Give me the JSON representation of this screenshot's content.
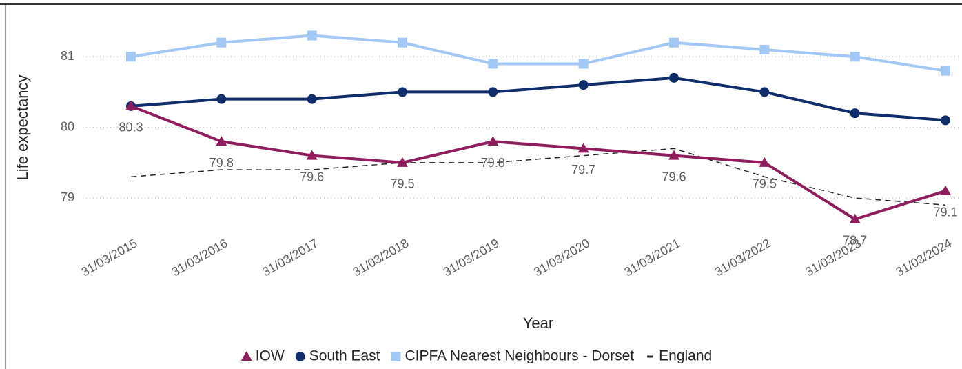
{
  "chart_data": {
    "type": "line",
    "x_label": "Year",
    "y_label": "Life expectancy",
    "categories": [
      "31/03/2015",
      "31/03/2016",
      "31/03/2017",
      "31/03/2018",
      "31/03/2019",
      "31/03/2020",
      "31/03/2021",
      "31/03/2022",
      "31/03/2023",
      "31/03/2024"
    ],
    "series": [
      {
        "name": "IOW",
        "color": "#8f1d5e",
        "marker": "triangle",
        "data_labels": true,
        "values": [
          80.3,
          79.8,
          79.6,
          79.5,
          79.8,
          79.7,
          79.6,
          79.5,
          78.7,
          79.1
        ]
      },
      {
        "name": "South East",
        "color": "#0f2d6b",
        "marker": "circle",
        "values": [
          80.3,
          80.4,
          80.4,
          80.5,
          80.5,
          80.6,
          80.7,
          80.5,
          80.2,
          80.1
        ]
      },
      {
        "name": "CIPFA Nearest Neighbours - Dorset",
        "color": "#a3c8f5",
        "marker": "square",
        "values": [
          81.0,
          81.2,
          81.3,
          81.2,
          80.9,
          80.9,
          81.2,
          81.1,
          81.0,
          80.8
        ]
      },
      {
        "name": "England",
        "color": "#222222",
        "dashed": true,
        "values": [
          79.3,
          79.4,
          79.4,
          79.5,
          79.5,
          79.6,
          79.7,
          79.3,
          79.0,
          78.9
        ]
      }
    ],
    "ylim": [
      78.6,
      81.5
    ],
    "yticks": [
      79,
      80,
      81
    ],
    "grid": true,
    "legend": "bottom"
  }
}
